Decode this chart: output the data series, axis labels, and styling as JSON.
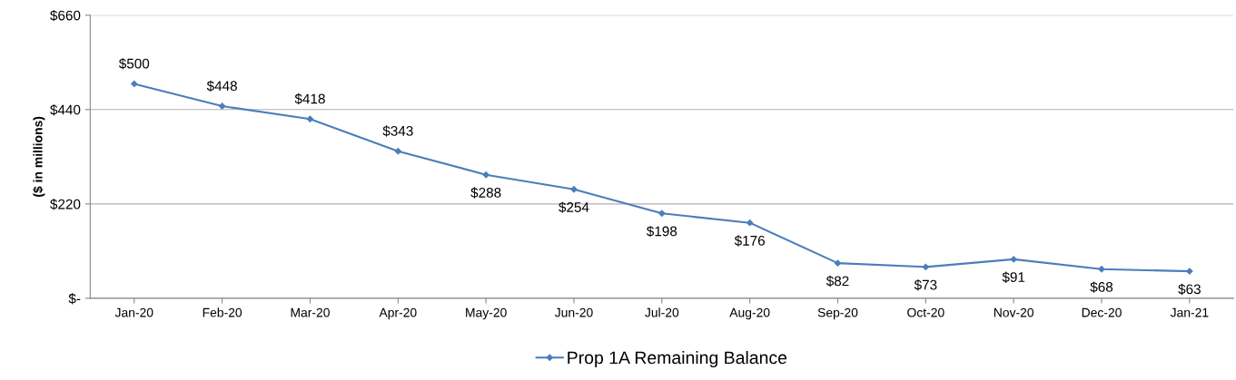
{
  "chart_data": {
    "type": "line",
    "ylabel": "($ in millions)",
    "categories": [
      "Jan-20",
      "Feb-20",
      "Mar-20",
      "Apr-20",
      "May-20",
      "Jun-20",
      "Jul-20",
      "Aug-20",
      "Sep-20",
      "Oct-20",
      "Nov-20",
      "Dec-20",
      "Jan-21"
    ],
    "series": [
      {
        "name": "Prop 1A Remaining Balance",
        "color": "#4a7ebb",
        "values": [
          500,
          448,
          418,
          343,
          288,
          254,
          198,
          176,
          82,
          73,
          91,
          68,
          63
        ],
        "value_labels": [
          "$500",
          "$448",
          "$418",
          "$343",
          "$288",
          "$254",
          "$198",
          "$176",
          "$82",
          "$73",
          "$91",
          "$68",
          "$63"
        ]
      }
    ],
    "ylim": [
      0,
      660
    ],
    "yticks": [
      {
        "value": 0,
        "label": "$-"
      },
      {
        "value": 220,
        "label": "$220"
      },
      {
        "value": 440,
        "label": "$440"
      },
      {
        "value": 660,
        "label": "$660"
      }
    ],
    "grid": "y",
    "legend": "bottom",
    "marker": "diamond",
    "line_style": "solid"
  }
}
